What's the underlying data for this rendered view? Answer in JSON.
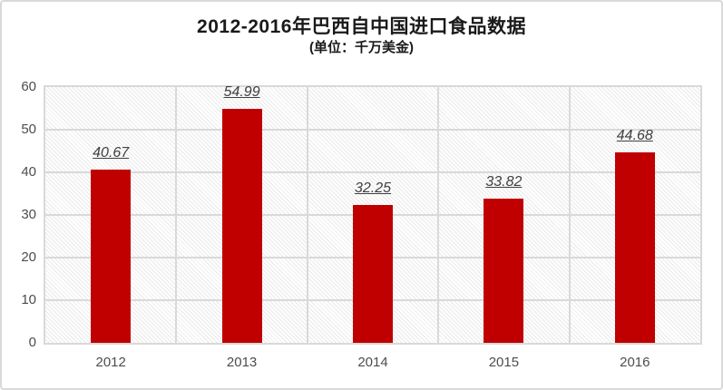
{
  "chart_data": {
    "type": "bar",
    "title": "2012-2016年巴西自中国进口食品数据",
    "subtitle": "(单位：千万美金)",
    "categories": [
      "2012",
      "2013",
      "2014",
      "2015",
      "2016"
    ],
    "values": [
      40.67,
      54.99,
      32.25,
      33.82,
      44.68
    ],
    "value_labels": [
      "40.67",
      "54.99",
      "32.25",
      "33.82",
      "44.68"
    ],
    "xlabel": "",
    "ylabel": "",
    "ylim": [
      0,
      60
    ],
    "yticks": [
      0,
      10,
      20,
      30,
      40,
      50,
      60
    ],
    "grid": true,
    "legend_position": "none",
    "plot_background": "diagonal-hatch",
    "colors": {
      "bar": "#C00000",
      "gridline": "#D9D9D9",
      "axis_text": "#4D4D4D",
      "value_label": "#3F3F3F",
      "title_text": "#1A1A1A",
      "card_border": "#D9D9D9",
      "hatch_line": "#E9E9E9",
      "background": "#FFFFFF"
    }
  }
}
